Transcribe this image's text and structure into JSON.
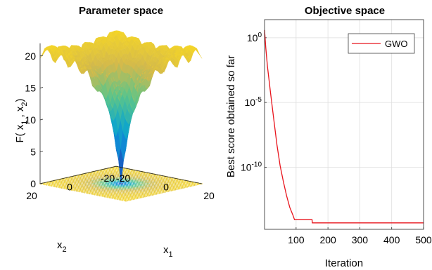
{
  "chart_data": [
    {
      "type": "surface3d",
      "title": "Parameter space",
      "xlabel": "x",
      "xlabel_sub": "1",
      "ylabel": "x",
      "ylabel_sub": "2",
      "zlabel": "F( x",
      "zlabel_sub1": "1",
      "zlabel_mid": " , x",
      "zlabel_sub2": "2",
      "zlabel_end": ")",
      "xlim": [
        -20,
        20
      ],
      "ylim": [
        -20,
        20
      ],
      "zlim": [
        0,
        22
      ],
      "x_ticks": [
        "-20",
        "0",
        "20"
      ],
      "y_ticks": [
        "-20",
        "0",
        "20"
      ],
      "z_ticks": [
        "0",
        "5",
        "10",
        "15",
        "20"
      ],
      "function": "Ackley",
      "colormap": [
        "#352a87",
        "#0f77db",
        "#12a8c8",
        "#5cc58a",
        "#d3b94c",
        "#f9d923"
      ]
    },
    {
      "type": "line",
      "title": "Objective space",
      "xlabel": "Iteration",
      "ylabel": "Best score obtained so far",
      "xlim": [
        1,
        500
      ],
      "ylim_exp": [
        -14.8,
        1.4
      ],
      "yscale": "log",
      "x_ticks": [
        "100",
        "200",
        "300",
        "400",
        "500"
      ],
      "y_ticks": [
        {
          "base": "10",
          "exp": "0"
        },
        {
          "base": "10",
          "exp": "-5"
        },
        {
          "base": "10",
          "exp": "-10"
        }
      ],
      "grid": true,
      "legend_position": "top-right",
      "series": [
        {
          "name": "GWO",
          "color": "#e8141c",
          "x": [
            1,
            5,
            10,
            20,
            30,
            40,
            50,
            60,
            70,
            80,
            90,
            95,
            100,
            150,
            151,
            500
          ],
          "y_exp": [
            0.6,
            -0.8,
            -2.2,
            -4.3,
            -6.3,
            -8.3,
            -9.9,
            -11.1,
            -12.2,
            -13.1,
            -13.7,
            -14.05,
            -14.05,
            -14.05,
            -14.3,
            -14.3
          ]
        }
      ]
    }
  ]
}
